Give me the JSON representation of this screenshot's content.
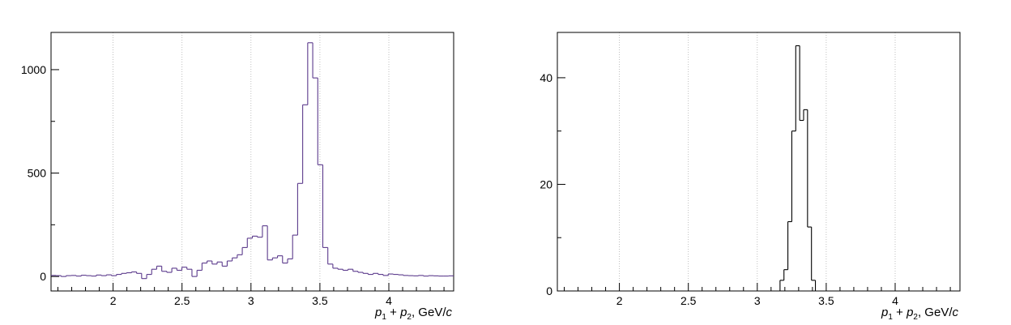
{
  "chart_data": [
    {
      "type": "histogram",
      "xlabel": {
        "p": "p",
        "sub1": "1",
        "plus": " + ",
        "p2": "p",
        "sub2": "2",
        "unit": ", GeV/",
        "c": "c"
      },
      "xlim": [
        1.55,
        4.47
      ],
      "ylim": [
        -70,
        1180
      ],
      "x_ticks": [
        2,
        2.5,
        3,
        3.5,
        4
      ],
      "x_tick_labels": [
        "2",
        "2.5",
        "3",
        "3.5",
        "4"
      ],
      "y_ticks": [
        0,
        500,
        1000
      ],
      "y_tick_labels": [
        "0",
        "500",
        "1000"
      ],
      "grid_x": true,
      "line_color": "#5b3a8c",
      "bin_edges_start": 1.55,
      "bin_width": 0.0365,
      "values": [
        5,
        4,
        0,
        4,
        5,
        2,
        6,
        4,
        2,
        7,
        4,
        8,
        4,
        10,
        15,
        18,
        22,
        15,
        -10,
        10,
        35,
        50,
        25,
        20,
        40,
        30,
        45,
        35,
        0,
        30,
        65,
        75,
        60,
        70,
        50,
        75,
        90,
        105,
        140,
        185,
        195,
        190,
        245,
        80,
        90,
        100,
        65,
        85,
        200,
        450,
        830,
        1130,
        960,
        540,
        140,
        60,
        40,
        35,
        30,
        35,
        25,
        20,
        15,
        10,
        15,
        10,
        5,
        12,
        10,
        8,
        5,
        4,
        3,
        5,
        2,
        4,
        3,
        2,
        2,
        3
      ]
    },
    {
      "type": "histogram",
      "xlabel": {
        "p": "p",
        "sub1": "1",
        "plus": " + ",
        "p2": "p",
        "sub2": "2",
        "unit": ", GeV/",
        "c": "c"
      },
      "xlim": [
        1.55,
        4.47
      ],
      "ylim": [
        0,
        48.5
      ],
      "x_ticks": [
        2,
        2.5,
        3,
        3.5,
        4
      ],
      "x_tick_labels": [
        "2",
        "2.5",
        "3",
        "3.5",
        "4"
      ],
      "y_ticks": [
        0,
        20,
        40
      ],
      "y_tick_labels": [
        "0",
        "20",
        "40"
      ],
      "grid_x": true,
      "line_color": "#000000",
      "bin_edges_start": 3.165,
      "bin_width": 0.0285,
      "values": [
        2,
        4,
        13,
        30,
        46,
        32,
        34,
        12,
        2
      ]
    }
  ]
}
